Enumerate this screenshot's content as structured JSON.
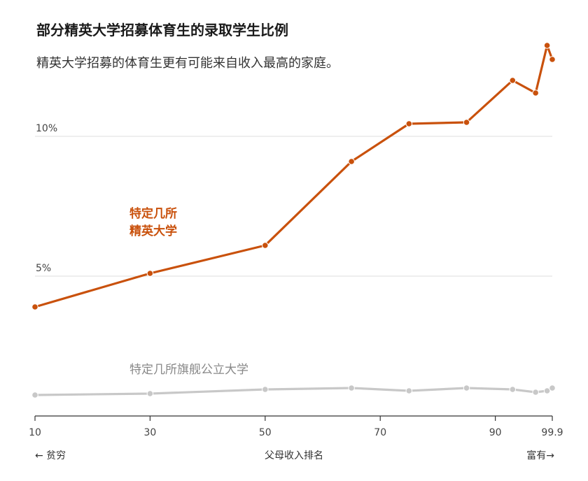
{
  "title": "部分精英大学招募体育生的录取学生比例",
  "subtitle": "精英大学招募的体育生更有可能来自收入最高的家庭。",
  "footer": {
    "left": "← 贫穷",
    "center": "父母收入排名",
    "right": "富有→"
  },
  "series_labels": {
    "elite_line1": "特定几所",
    "elite_line2": "精英大学",
    "flagship": "特定几所旗舰公立大学"
  },
  "colors": {
    "elite": "#c9510c",
    "flagship": "#c8c8c8",
    "flagship_label": "#888888",
    "grid": "#dddddd",
    "axis": "#333333"
  },
  "chart_data": {
    "type": "line",
    "title": "部分精英大学招募体育生的录取学生比例",
    "subtitle": "精英大学招募的体育生更有可能来自收入最高的家庭。",
    "xlabel": "父母收入排名",
    "ylabel": "",
    "xlim": [
      10,
      99.9
    ],
    "ylim": [
      0,
      13.5
    ],
    "x_ticks": [
      10,
      30,
      50,
      70,
      90,
      99.9
    ],
    "x_tick_labels": [
      "10",
      "30",
      "50",
      "70",
      "90",
      "99.9"
    ],
    "y_ticks": [
      5,
      10
    ],
    "y_tick_labels": [
      "5%",
      "10%"
    ],
    "series": [
      {
        "name": "特定几所精英大学",
        "x": [
          10,
          30,
          50,
          65,
          75,
          85,
          93,
          97,
          99,
          99.9
        ],
        "y": [
          3.9,
          5.1,
          6.1,
          9.1,
          10.45,
          10.5,
          12.0,
          11.55,
          13.25,
          12.75
        ]
      },
      {
        "name": "特定几所旗舰公立大学",
        "x": [
          10,
          30,
          50,
          65,
          75,
          85,
          93,
          97,
          99,
          99.9
        ],
        "y": [
          0.75,
          0.8,
          0.95,
          1.0,
          0.9,
          1.0,
          0.95,
          0.85,
          0.9,
          1.0
        ]
      }
    ],
    "grid": true
  }
}
